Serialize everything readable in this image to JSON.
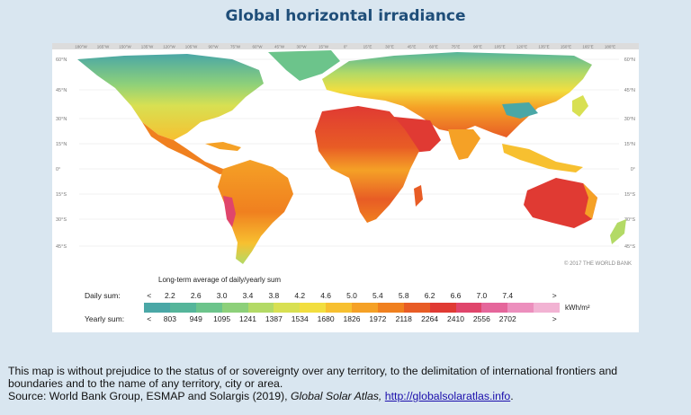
{
  "title": "Global horizontal irradiance",
  "map": {
    "top_longitudes": [
      "180°W",
      "165°W",
      "150°W",
      "135°W",
      "120°W",
      "105°W",
      "90°W",
      "75°W",
      "60°W",
      "45°W",
      "30°W",
      "15°W",
      "0°",
      "15°E",
      "30°E",
      "45°E",
      "60°E",
      "75°E",
      "90°E",
      "105°E",
      "120°E",
      "135°E",
      "150°E",
      "165°E",
      "180°E"
    ],
    "left_latitudes": [
      "60°N",
      "45°N",
      "30°N",
      "15°N",
      "0°",
      "15°S",
      "30°S",
      "45°S"
    ],
    "right_latitudes": [
      "60°N",
      "45°N",
      "30°N",
      "15°N",
      "0°",
      "15°S",
      "30°S",
      "45°S"
    ],
    "copyright": "© 2017 THE WORLD BANK"
  },
  "legend": {
    "caption": "Long-term average of daily/yearly sum",
    "daily_label": "Daily sum:",
    "yearly_label": "Yearly sum:",
    "less_symbol": "<",
    "more_symbol": ">",
    "daily_values": [
      "2.2",
      "2.6",
      "3.0",
      "3.4",
      "3.8",
      "4.2",
      "4.6",
      "5.0",
      "5.4",
      "5.8",
      "6.2",
      "6.6",
      "7.0",
      "7.4"
    ],
    "yearly_values": [
      "803",
      "949",
      "1095",
      "1241",
      "1387",
      "1534",
      "1680",
      "1826",
      "1972",
      "2118",
      "2264",
      "2410",
      "2556",
      "2702"
    ],
    "unit": "kWh/m²",
    "colors": [
      "#4aa7a6",
      "#55b59a",
      "#6cc48b",
      "#8dd07a",
      "#b3da66",
      "#d8e052",
      "#f2de3f",
      "#f7c030",
      "#f5a126",
      "#f0801f",
      "#e85c25",
      "#e03a33",
      "#e0456b",
      "#e5669b",
      "#ec8fbd",
      "#f2b3d3"
    ]
  },
  "footer": {
    "line1": "This map is without prejudice to the status of or sovereignty over any territory, to the delimitation of international frontiers and",
    "line2": "boundaries and to the name of any territory, city or area.",
    "source_prefix": "Source: World Bank Group, ESMAP and Solargis (2019), ",
    "source_title": "Global Solar Atlas,",
    "source_link": "http://globalsolaratlas.info",
    "source_suffix": "."
  }
}
